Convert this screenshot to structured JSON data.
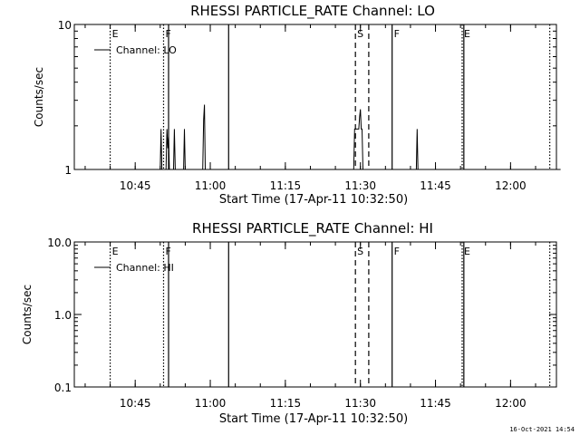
{
  "chart_data": [
    {
      "type": "line",
      "title": "RHESSI PARTICLE_RATE Channel: LO",
      "ylabel": "Counts/sec",
      "xlabel": "Start Time (17-Apr-11 10:32:50)",
      "yscale": "log",
      "ylim": [
        1,
        10
      ],
      "ytick_labels": [
        "1",
        "10"
      ],
      "xtick_labels": [
        "10:45",
        "11:00",
        "11:15",
        "11:30",
        "11:45",
        "12:00"
      ],
      "legend": {
        "label": "Channel: LO",
        "placement": "top-left"
      },
      "event_markers": [
        {
          "time": "10:40:00",
          "label": "E",
          "style": "dotted"
        },
        {
          "time": "10:50:40",
          "label": "F",
          "style": "dotted"
        },
        {
          "time": "10:51:40",
          "label": "",
          "style": "solid"
        },
        {
          "time": "11:03:40",
          "label": "",
          "style": "solid"
        },
        {
          "time": "11:29:00",
          "label": "S",
          "style": "dashed"
        },
        {
          "time": "11:31:40",
          "label": "",
          "style": "dashed"
        },
        {
          "time": "11:36:20",
          "label": "F",
          "style": "solid"
        },
        {
          "time": "11:50:20",
          "label": "E",
          "style": "dotted"
        },
        {
          "time": "11:50:40",
          "label": "",
          "style": "solid"
        },
        {
          "time": "12:07:50",
          "label": "",
          "style": "dotted"
        }
      ],
      "series": [
        {
          "name": "Channel: LO",
          "points": [
            [
              "10:32:50",
              1
            ],
            [
              "10:50:00",
              1
            ],
            [
              "10:50:10",
              1.9
            ],
            [
              "10:50:20",
              1
            ],
            [
              "10:51:10",
              1
            ],
            [
              "10:51:20",
              1.9
            ],
            [
              "10:51:30",
              1.4
            ],
            [
              "10:51:40",
              1.7
            ],
            [
              "10:51:50",
              1
            ],
            [
              "10:52:40",
              1
            ],
            [
              "10:52:50",
              1.9
            ],
            [
              "10:53:00",
              1
            ],
            [
              "10:54:40",
              1
            ],
            [
              "10:54:50",
              1.9
            ],
            [
              "10:55:00",
              1
            ],
            [
              "10:58:30",
              1
            ],
            [
              "10:58:40",
              2.2
            ],
            [
              "10:58:50",
              2.8
            ],
            [
              "10:59:00",
              1
            ],
            [
              "11:28:40",
              1
            ],
            [
              "11:28:50",
              1.9
            ],
            [
              "11:29:40",
              1.9
            ],
            [
              "11:29:50",
              2.3
            ],
            [
              "11:30:00",
              2.6
            ],
            [
              "11:30:10",
              1.9
            ],
            [
              "11:30:20",
              1.9
            ],
            [
              "11:30:30",
              1
            ],
            [
              "11:41:10",
              1
            ],
            [
              "11:41:20",
              1.9
            ],
            [
              "11:41:30",
              1
            ],
            [
              "12:10:00",
              1
            ]
          ]
        }
      ]
    },
    {
      "type": "line",
      "title": "RHESSI PARTICLE_RATE Channel: HI",
      "ylabel": "Counts/sec",
      "xlabel": "Start Time (17-Apr-11 10:32:50)",
      "yscale": "log",
      "ylim": [
        0.1,
        10
      ],
      "ytick_labels": [
        "0.1",
        "1.0",
        "10.0"
      ],
      "xtick_labels": [
        "10:45",
        "11:00",
        "11:15",
        "11:30",
        "11:45",
        "12:00"
      ],
      "legend": {
        "label": "Channel: HI",
        "placement": "top-left"
      },
      "event_markers": [
        {
          "time": "10:40:00",
          "label": "E",
          "style": "dotted"
        },
        {
          "time": "10:50:40",
          "label": "F",
          "style": "dotted"
        },
        {
          "time": "10:51:40",
          "label": "",
          "style": "solid"
        },
        {
          "time": "11:03:40",
          "label": "",
          "style": "solid"
        },
        {
          "time": "11:29:00",
          "label": "S",
          "style": "dashed"
        },
        {
          "time": "11:31:40",
          "label": "",
          "style": "dashed"
        },
        {
          "time": "11:36:20",
          "label": "F",
          "style": "solid"
        },
        {
          "time": "11:50:20",
          "label": "E",
          "style": "dotted"
        },
        {
          "time": "11:50:40",
          "label": "",
          "style": "solid"
        },
        {
          "time": "12:07:50",
          "label": "",
          "style": "dotted"
        }
      ],
      "series": [
        {
          "name": "Channel: HI",
          "points": []
        }
      ]
    }
  ],
  "footer": {
    "timestamp": "16-Oct-2021 14:54"
  }
}
